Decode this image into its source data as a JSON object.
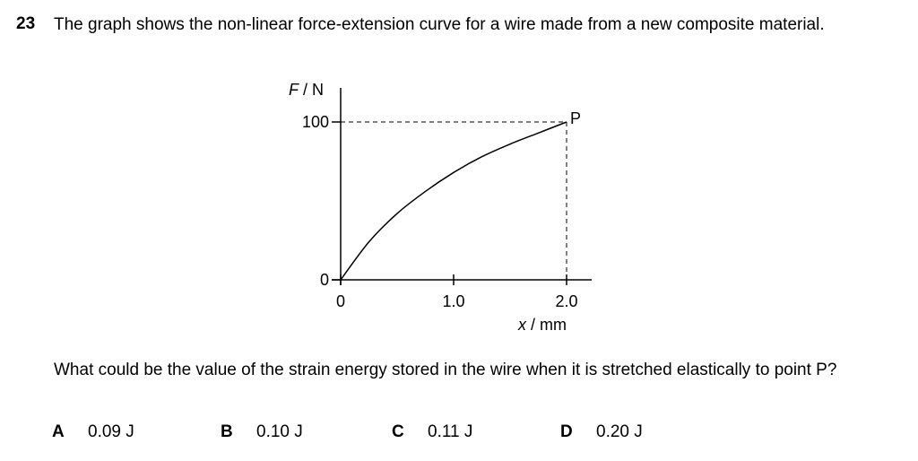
{
  "question": {
    "number": "23",
    "stem": "The graph shows the non-linear force-extension curve for a wire made from a new composite material.",
    "prompt": "What could be the value of the strain energy stored in the wire when it is stretched elastically to point P?",
    "options": [
      {
        "letter": "A",
        "text": "0.09 J"
      },
      {
        "letter": "B",
        "text": "0.10 J"
      },
      {
        "letter": "C",
        "text": "0.11 J"
      },
      {
        "letter": "D",
        "text": "0.20 J"
      }
    ]
  },
  "chart_data": {
    "type": "line",
    "y_axis": {
      "symbol": "F",
      "unit": "N",
      "ticks": [
        0,
        100
      ]
    },
    "x_axis": {
      "symbol": "x",
      "unit": "mm",
      "ticks": [
        0,
        1.0,
        2.0
      ],
      "tick_labels": [
        "0",
        "1.0",
        "2.0"
      ]
    },
    "xlim": [
      0,
      2.0
    ],
    "ylim": [
      0,
      100
    ],
    "series": [
      {
        "x": [
          0,
          0.25,
          0.5,
          0.75,
          1.0,
          1.25,
          1.5,
          1.75,
          2.0
        ],
        "y": [
          0,
          24,
          42,
          56,
          68,
          78,
          86,
          93,
          100
        ]
      }
    ],
    "point_label": "P",
    "point": {
      "x": 2.0,
      "y": 100
    },
    "dashed_guides": true,
    "colors": {
      "ink": "#000000",
      "background": "#ffffff"
    }
  }
}
